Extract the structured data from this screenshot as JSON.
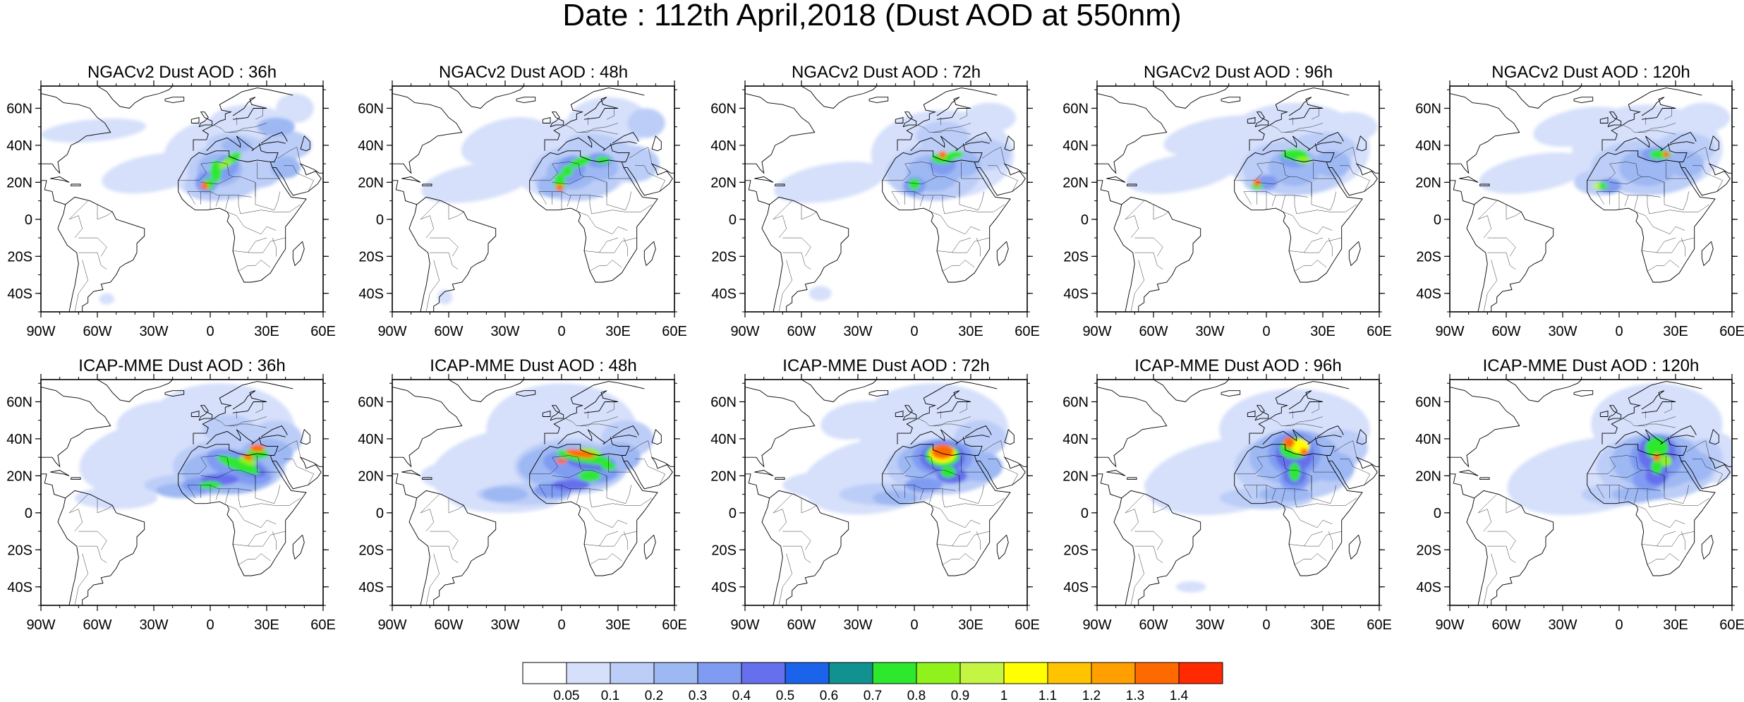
{
  "figure": {
    "title": "Date : 112th April,2018 (Dust AOD at 550nm)"
  },
  "axes": {
    "lat_labels": [
      "60N",
      "40N",
      "20N",
      "0",
      "20S",
      "40S"
    ],
    "lon_labels": [
      "90W",
      "60W",
      "30W",
      "0",
      "30E",
      "60E"
    ]
  },
  "panels": [
    {
      "title": "NGACv2 Dust AOD : 36h",
      "model": "NGACv2",
      "lead": "36h"
    },
    {
      "title": "NGACv2 Dust AOD : 48h",
      "model": "NGACv2",
      "lead": "48h"
    },
    {
      "title": "NGACv2 Dust AOD : 72h",
      "model": "NGACv2",
      "lead": "72h"
    },
    {
      "title": "NGACv2 Dust AOD : 96h",
      "model": "NGACv2",
      "lead": "96h"
    },
    {
      "title": "NGACv2 Dust AOD : 120h",
      "model": "NGACv2",
      "lead": "120h"
    },
    {
      "title": "ICAP-MME Dust AOD : 36h",
      "model": "ICAP-MME",
      "lead": "36h"
    },
    {
      "title": "ICAP-MME Dust AOD : 48h",
      "model": "ICAP-MME",
      "lead": "48h"
    },
    {
      "title": "ICAP-MME Dust AOD : 72h",
      "model": "ICAP-MME",
      "lead": "72h"
    },
    {
      "title": "ICAP-MME Dust AOD : 96h",
      "model": "ICAP-MME",
      "lead": "96h"
    },
    {
      "title": "ICAP-MME Dust AOD : 120h",
      "model": "ICAP-MME",
      "lead": "120h"
    }
  ],
  "colorbar": {
    "labels": [
      "0.05",
      "0.1",
      "0.2",
      "0.3",
      "0.4",
      "0.5",
      "0.6",
      "0.7",
      "0.8",
      "0.9",
      "1",
      "1.1",
      "1.2",
      "1.3",
      "1.4"
    ],
    "colors": [
      "#ffffff",
      "#d6e0fb",
      "#bccdf7",
      "#9db8f3",
      "#7f9cf2",
      "#6670ec",
      "#1b63ea",
      "#129191",
      "#2de82d",
      "#8ff21b",
      "#c4f542",
      "#ffff00",
      "#ffc300",
      "#ff9f00",
      "#ff6a00",
      "#ff2a00"
    ]
  }
}
